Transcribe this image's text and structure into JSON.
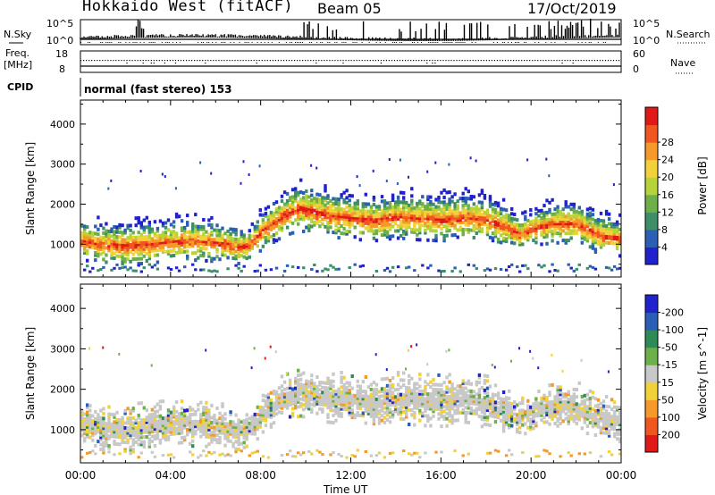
{
  "header": {
    "station": "Hokkaido West (fitACF)",
    "beam": "Beam 05",
    "date": "17/Oct/2019"
  },
  "strip": {
    "nsky_label": "N.Sky",
    "nsky_top": "10^5",
    "nsky_bottom": "10^0",
    "nsearch_label": "N.Search",
    "nsearch_top": "10^5",
    "nsearch_bottom": "10^0",
    "freq_label": "Freq.",
    "freq_unit": "[MHz]",
    "freq_top": "18",
    "freq_bottom": "8",
    "nave_label": "Nave",
    "nave_top": "60",
    "nave_bottom": "0",
    "cpid_label": "CPID",
    "cpid_text": "normal (fast stereo) 153"
  },
  "colors": {
    "power": [
      "#2222cc",
      "#2a5fb5",
      "#3e8e6a",
      "#6db04a",
      "#b6d43a",
      "#f2d23a",
      "#f59a2a",
      "#f0561f",
      "#e01818"
    ],
    "velocity": [
      "#e01818",
      "#f0561f",
      "#f59a2a",
      "#f2d23a",
      "#c8c8c8",
      "#6db04a",
      "#2e8b57",
      "#2a5fb5",
      "#2222cc"
    ]
  },
  "chart_data": [
    {
      "type": "heatmap",
      "name": "power",
      "xlabel": "",
      "ylabel": "Slant Range [km]",
      "x_ticks": [
        "00:00",
        "04:00",
        "08:00",
        "12:00",
        "16:00",
        "20:00",
        "00:00"
      ],
      "y_ticks": [
        "1000",
        "2000",
        "3000",
        "4000"
      ],
      "ylim": [
        180,
        4600
      ],
      "xlim_hours": [
        0,
        24
      ],
      "colorbar_label": "Power [dB]",
      "colorbar_ticks": [
        "4",
        "8",
        "12",
        "16",
        "20",
        "24",
        "28"
      ],
      "echo_band": {
        "hours": [
          0,
          1,
          2,
          3,
          4,
          5,
          6,
          7,
          7.5,
          8,
          9,
          9.7,
          10.5,
          12,
          13,
          14,
          15,
          16,
          17,
          18,
          19,
          19.5,
          20,
          21,
          22,
          23,
          24
        ],
        "center_km": [
          1130,
          1020,
          1000,
          1040,
          1090,
          1130,
          1080,
          960,
          1030,
          1350,
          1760,
          1950,
          1820,
          1700,
          1630,
          1730,
          1700,
          1660,
          1720,
          1640,
          1440,
          1280,
          1420,
          1560,
          1560,
          1260,
          1180
        ],
        "half_width_km": [
          320,
          330,
          350,
          360,
          350,
          330,
          320,
          280,
          250,
          300,
          340,
          380,
          380,
          360,
          340,
          360,
          370,
          360,
          370,
          360,
          320,
          260,
          280,
          330,
          330,
          320,
          300
        ]
      }
    },
    {
      "type": "heatmap",
      "name": "velocity",
      "xlabel": "Time UT",
      "ylabel": "Slant Range [km]",
      "x_ticks": [
        "00:00",
        "04:00",
        "08:00",
        "12:00",
        "16:00",
        "20:00",
        "00:00"
      ],
      "y_ticks": [
        "1000",
        "2000",
        "3000",
        "4000"
      ],
      "ylim": [
        180,
        4600
      ],
      "xlim_hours": [
        0,
        24
      ],
      "colorbar_label": "Velocity [m s^-1]",
      "colorbar_ticks": [
        "-200",
        "-100",
        "-50",
        "-15",
        "15",
        "50",
        "100",
        "200"
      ]
    }
  ]
}
